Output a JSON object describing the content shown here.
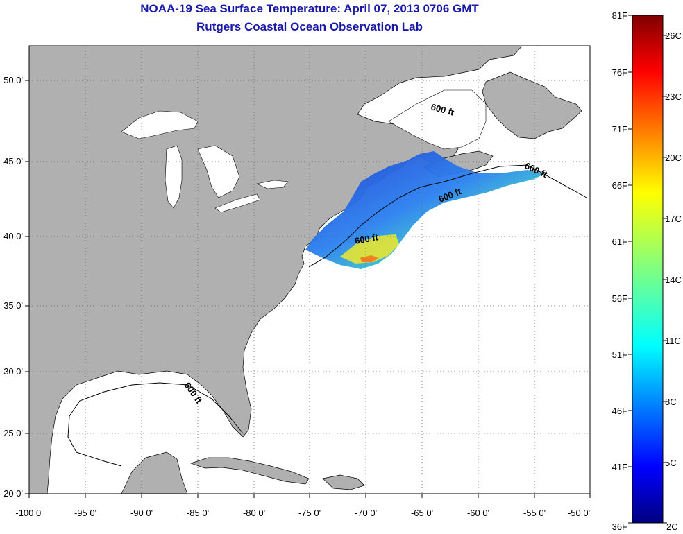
{
  "title": {
    "line1": "NOAA-19 Sea Surface Temperature:  April 07, 2013 0706 GMT",
    "line2": "Rutgers Coastal Ocean Observation Lab"
  },
  "map": {
    "lon_range": [
      -100,
      -50
    ],
    "lat_range": [
      20,
      52.5
    ],
    "lon_ticks": [
      "-100 0'",
      "-95 0'",
      "-90 0'",
      "-85 0'",
      "-80 0'",
      "-75 0'",
      "-70 0'",
      "-65 0'",
      "-60 0'",
      "-55 0'",
      "-50 0'"
    ],
    "lat_ticks": [
      "20 0'",
      "25 0'",
      "30 0'",
      "35 0'",
      "40 0'",
      "45 0'",
      "50 0'"
    ],
    "land_color": "#b0b0b0",
    "water_color": "#ffffff",
    "grid": true,
    "contour_labels": [
      "600 ft",
      "600 ft",
      "600 ft",
      "600 ft",
      "600 ft"
    ]
  },
  "colorbar": {
    "fahrenheit": [
      "81F",
      "76F",
      "71F",
      "66F",
      "61F",
      "56F",
      "51F",
      "46F",
      "41F",
      "36F"
    ],
    "celsius": [
      "26C",
      "23C",
      "20C",
      "17C",
      "14C",
      "11C",
      "8C",
      "5C",
      "2C"
    ],
    "colormap": "jet",
    "range_F": [
      36,
      81
    ]
  }
}
